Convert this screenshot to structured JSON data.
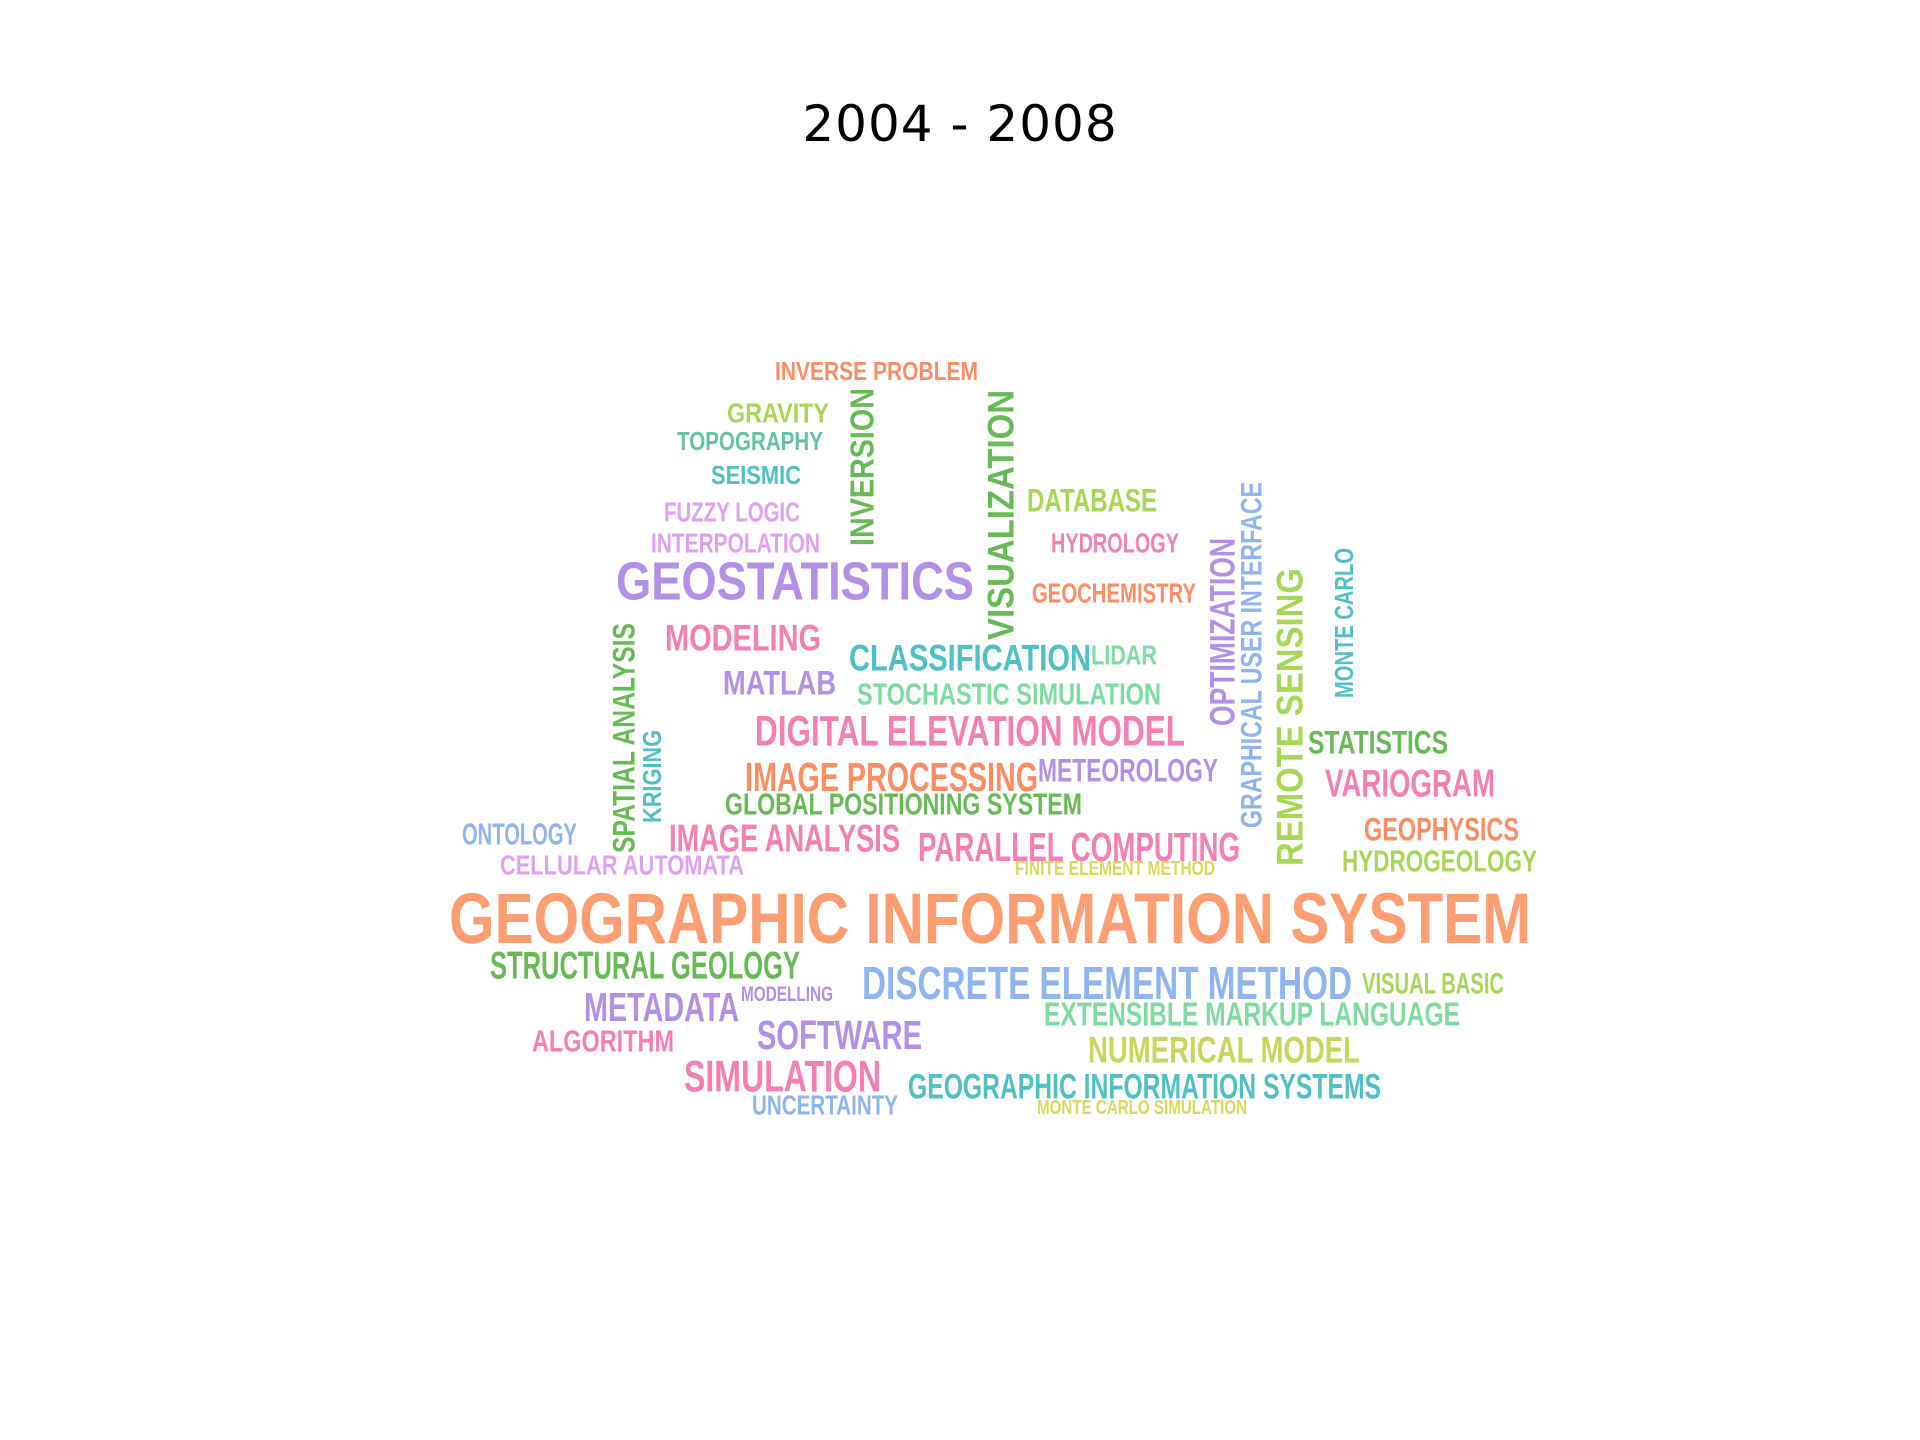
{
  "title": "2004 - 2008",
  "words": [
    {
      "text": "INVERSE PROBLEM",
      "color": "#fc8d62",
      "rotated": false
    },
    {
      "text": "GRAVITY",
      "color": "#a6d854",
      "rotated": false
    },
    {
      "text": "TOPOGRAPHY",
      "color": "#66c2a5",
      "rotated": false
    },
    {
      "text": "SEISMIC",
      "color": "#4fc0c4",
      "rotated": false
    },
    {
      "text": "FUZZY LOGIC",
      "color": "#e0a1f2",
      "rotated": false
    },
    {
      "text": "INTERPOLATION",
      "color": "#e0a1f2",
      "rotated": false
    },
    {
      "text": "INVERSION",
      "color": "#66bb55",
      "rotated": true
    },
    {
      "text": "VISUALIZATION",
      "color": "#66bb55",
      "rotated": true
    },
    {
      "text": "DATABASE",
      "color": "#a6d854",
      "rotated": false
    },
    {
      "text": "HYDROLOGY",
      "color": "#f47fb5",
      "rotated": false
    },
    {
      "text": "GEOCHEMISTRY",
      "color": "#fc8d62",
      "rotated": false
    },
    {
      "text": "GEOSTATISTICS",
      "color": "#b38fe6",
      "rotated": false
    },
    {
      "text": "MODELING",
      "color": "#f47fb5",
      "rotated": false
    },
    {
      "text": "CLASSIFICATION",
      "color": "#4fc0c4",
      "rotated": false
    },
    {
      "text": "LIDAR",
      "color": "#7fdca0",
      "rotated": false
    },
    {
      "text": "MATLAB",
      "color": "#b38fe6",
      "rotated": false
    },
    {
      "text": "STOCHASTIC SIMULATION",
      "color": "#7fdca0",
      "rotated": false
    },
    {
      "text": "DIGITAL ELEVATION MODEL",
      "color": "#f47fb5",
      "rotated": false
    },
    {
      "text": "OPTIMIZATION",
      "color": "#b38fe6",
      "rotated": true
    },
    {
      "text": "GRAPHICAL USER INTERFACE",
      "color": "#8fb4f0",
      "rotated": true
    },
    {
      "text": "REMOTE SENSING",
      "color": "#a6d854",
      "rotated": true
    },
    {
      "text": "MONTE CARLO",
      "color": "#4fc0c4",
      "rotated": true
    },
    {
      "text": "SPATIAL ANALYSIS",
      "color": "#66bb55",
      "rotated": true
    },
    {
      "text": "KRIGING",
      "color": "#4fc0c4",
      "rotated": true
    },
    {
      "text": "STATISTICS",
      "color": "#66bb55",
      "rotated": false
    },
    {
      "text": "VARIOGRAM",
      "color": "#f47fb5",
      "rotated": false
    },
    {
      "text": "IMAGE PROCESSING",
      "color": "#fc8d62",
      "rotated": false
    },
    {
      "text": "METEOROLOGY",
      "color": "#b38fe6",
      "rotated": false
    },
    {
      "text": "GLOBAL POSITIONING SYSTEM",
      "color": "#66bb55",
      "rotated": false
    },
    {
      "text": "ONTOLOGY",
      "color": "#8fb4f0",
      "rotated": false
    },
    {
      "text": "CELLULAR AUTOMATA",
      "color": "#e0a1f2",
      "rotated": false
    },
    {
      "text": "IMAGE ANALYSIS",
      "color": "#f47fb5",
      "rotated": false
    },
    {
      "text": "PARALLEL COMPUTING",
      "color": "#f47fb5",
      "rotated": false
    },
    {
      "text": "FINITE ELEMENT METHOD",
      "color": "#d9d95a",
      "rotated": false
    },
    {
      "text": "GEOPHYSICS",
      "color": "#fc8d62",
      "rotated": false
    },
    {
      "text": "HYDROGEOLOGY",
      "color": "#a6d854",
      "rotated": false
    },
    {
      "text": "GEOGRAPHIC INFORMATION SYSTEM",
      "color": "#fc9d72",
      "rotated": false
    },
    {
      "text": "STRUCTURAL GEOLOGY",
      "color": "#66bb55",
      "rotated": false
    },
    {
      "text": "DISCRETE ELEMENT METHOD",
      "color": "#8fb4f0",
      "rotated": false
    },
    {
      "text": "VISUAL BASIC",
      "color": "#a6d854",
      "rotated": false
    },
    {
      "text": "METADATA",
      "color": "#b38fe6",
      "rotated": false
    },
    {
      "text": "MODELLING",
      "color": "#b38fe6",
      "rotated": false
    },
    {
      "text": "EXTENSIBLE MARKUP LANGUAGE",
      "color": "#7fdca0",
      "rotated": false
    },
    {
      "text": "ALGORITHM",
      "color": "#f47fb5",
      "rotated": false
    },
    {
      "text": "SOFTWARE",
      "color": "#b38fe6",
      "rotated": false
    },
    {
      "text": "NUMERICAL MODEL",
      "color": "#c8d65a",
      "rotated": false
    },
    {
      "text": "SIMULATION",
      "color": "#f47fb5",
      "rotated": false
    },
    {
      "text": "GEOGRAPHIC INFORMATION SYSTEMS",
      "color": "#4fc0c4",
      "rotated": false
    },
    {
      "text": "UNCERTAINTY",
      "color": "#8fb4f0",
      "rotated": false
    },
    {
      "text": "MONTE CARLO SIMULATION",
      "color": "#d9d95a",
      "rotated": false
    }
  ]
}
